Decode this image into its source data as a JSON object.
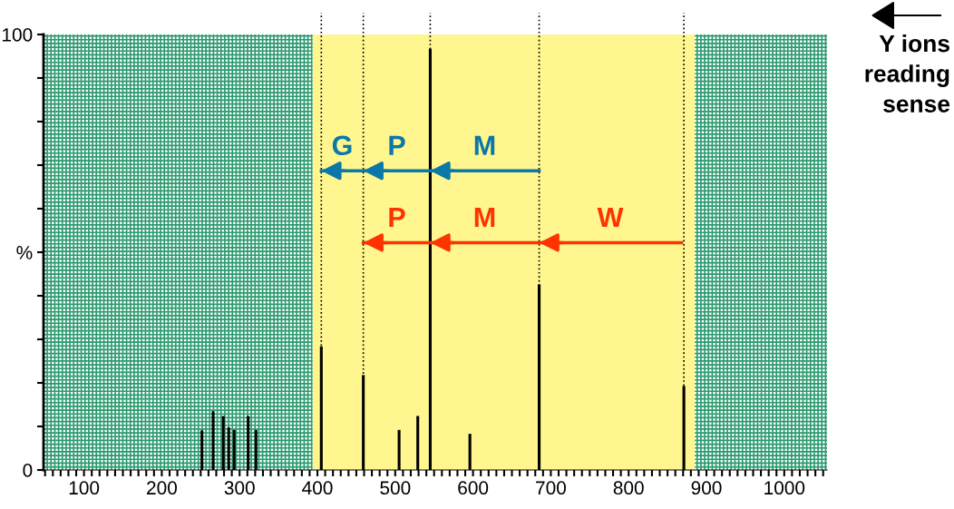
{
  "chart_data": {
    "type": "bar",
    "x": [
      251.6,
      266,
      279,
      286,
      293,
      311,
      321,
      405,
      459,
      505,
      529,
      545,
      596,
      685,
      871
    ],
    "values": [
      9.1,
      13.5,
      12.4,
      9.8,
      9.2,
      12.4,
      9.2,
      28.4,
      21.8,
      9.2,
      12.4,
      96.7,
      8.3,
      42.6,
      19.3
    ],
    "color": "#000000",
    "series": [
      {
        "type": "line",
        "color": "#0a78a8",
        "x": [
          685,
          545,
          459,
          405
        ],
        "values": [
          68.7,
          68.7,
          68.7,
          68.7
        ]
      },
      {
        "type": "line",
        "color": "#ff3300",
        "x": [
          868,
          685,
          545,
          459
        ],
        "values": [
          52.2,
          52.2,
          52.2,
          52.2
        ]
      }
    ],
    "xlim": [
      48,
      1055
    ],
    "ylim": [
      0,
      100
    ],
    "xticks": [
      {
        "value": 50,
        "label": null
      },
      {
        "value": 60,
        "label": null
      },
      {
        "value": 70,
        "label": null
      },
      {
        "value": 80,
        "label": null
      },
      {
        "value": 90,
        "label": null
      },
      100,
      {
        "value": 110,
        "label": null
      },
      {
        "value": 120,
        "label": null
      },
      {
        "value": 130,
        "label": null
      },
      {
        "value": 140,
        "label": null
      },
      {
        "value": 150,
        "label": null
      },
      {
        "value": 160,
        "label": null
      },
      {
        "value": 170,
        "label": null
      },
      {
        "value": 180,
        "label": null
      },
      {
        "value": 190,
        "label": null
      },
      200,
      {
        "value": 210,
        "label": null
      },
      {
        "value": 220,
        "label": null
      },
      {
        "value": 230,
        "label": null
      },
      {
        "value": 240,
        "label": null
      },
      {
        "value": 250,
        "label": null
      },
      {
        "value": 260,
        "label": null
      },
      {
        "value": 270,
        "label": null
      },
      {
        "value": 280,
        "label": null
      },
      {
        "value": 290,
        "label": null
      },
      300,
      {
        "value": 310,
        "label": null
      },
      {
        "value": 320,
        "label": null
      },
      {
        "value": 330,
        "label": null
      },
      {
        "value": 340,
        "label": null
      },
      {
        "value": 350,
        "label": null
      },
      {
        "value": 360,
        "label": null
      },
      {
        "value": 370,
        "label": null
      },
      {
        "value": 380,
        "label": null
      },
      {
        "value": 390,
        "label": null
      },
      400,
      {
        "value": 410,
        "label": null
      },
      {
        "value": 420,
        "label": null
      },
      {
        "value": 430,
        "label": null
      },
      {
        "value": 440,
        "label": null
      },
      {
        "value": 450,
        "label": null
      },
      {
        "value": 460,
        "label": null
      },
      {
        "value": 470,
        "label": null
      },
      {
        "value": 480,
        "label": null
      },
      {
        "value": 490,
        "label": null
      },
      500,
      {
        "value": 510,
        "label": null
      },
      {
        "value": 520,
        "label": null
      },
      {
        "value": 530,
        "label": null
      },
      {
        "value": 540,
        "label": null
      },
      {
        "value": 550,
        "label": null
      },
      {
        "value": 560,
        "label": null
      },
      {
        "value": 570,
        "label": null
      },
      {
        "value": 580,
        "label": null
      },
      {
        "value": 590,
        "label": null
      },
      600,
      {
        "value": 610,
        "label": null
      },
      {
        "value": 620,
        "label": null
      },
      {
        "value": 630,
        "label": null
      },
      {
        "value": 640,
        "label": null
      },
      {
        "value": 650,
        "label": null
      },
      {
        "value": 660,
        "label": null
      },
      {
        "value": 670,
        "label": null
      },
      {
        "value": 680,
        "label": null
      },
      {
        "value": 690,
        "label": null
      },
      700,
      {
        "value": 710,
        "label": null
      },
      {
        "value": 720,
        "label": null
      },
      {
        "value": 730,
        "label": null
      },
      {
        "value": 740,
        "label": null
      },
      {
        "value": 750,
        "label": null
      },
      {
        "value": 760,
        "label": null
      },
      {
        "value": 770,
        "label": null
      },
      {
        "value": 780,
        "label": null
      },
      {
        "value": 790,
        "label": null
      },
      800,
      {
        "value": 810,
        "label": null
      },
      {
        "value": 820,
        "label": null
      },
      {
        "value": 830,
        "label": null
      },
      {
        "value": 840,
        "label": null
      },
      {
        "value": 850,
        "label": null
      },
      {
        "value": 860,
        "label": null
      },
      {
        "value": 870,
        "label": null
      },
      {
        "value": 880,
        "label": null
      },
      {
        "value": 890,
        "label": null
      },
      900,
      {
        "value": 910,
        "label": null
      },
      {
        "value": 920,
        "label": null
      },
      {
        "value": 930,
        "label": null
      },
      {
        "value": 940,
        "label": null
      },
      {
        "value": 950,
        "label": null
      },
      {
        "value": 960,
        "label": null
      },
      {
        "value": 970,
        "label": null
      },
      {
        "value": 980,
        "label": null
      },
      {
        "value": 990,
        "label": null
      },
      1000,
      {
        "value": 1010,
        "label": null
      },
      {
        "value": 1020,
        "label": null
      },
      {
        "value": 1030,
        "label": null
      },
      {
        "value": 1040,
        "label": null
      },
      {
        "value": 1050,
        "label": null
      }
    ],
    "yticks": [
      0,
      {
        "value": 10,
        "label": null
      },
      {
        "value": 20,
        "label": null
      },
      {
        "value": 30,
        "label": null
      },
      {
        "value": 40,
        "label": null
      },
      {
        "value": 50,
        "label": "%"
      },
      {
        "value": 60,
        "label": null
      },
      {
        "value": 70,
        "label": null
      },
      {
        "value": 80,
        "label": null
      },
      {
        "value": 90,
        "label": null
      },
      100
    ],
    "bands": [
      {
        "axis": "x",
        "from": 48,
        "to": 394,
        "color": "#2a9a6e"
      },
      {
        "axis": "x",
        "from": 394,
        "to": 885,
        "color": "#fff68f"
      },
      {
        "axis": "x",
        "from": 885,
        "to": 1055,
        "color": "#2a9a6e"
      }
    ],
    "ref_lines": [
      {
        "axis": "x",
        "value": 405,
        "line_style": "dotted"
      },
      {
        "axis": "x",
        "value": 459,
        "line_style": "dotted"
      },
      {
        "axis": "x",
        "value": 545,
        "line_style": "dotted"
      },
      {
        "axis": "x",
        "value": 685,
        "line_style": "dotted"
      },
      {
        "axis": "x",
        "value": 871,
        "line_style": "dotted"
      }
    ],
    "annotations": [
      "G",
      "P",
      "M",
      "P",
      "M",
      "W",
      "Y ions\nreading\nsense"
    ],
    "grid": false,
    "legend": false
  }
}
